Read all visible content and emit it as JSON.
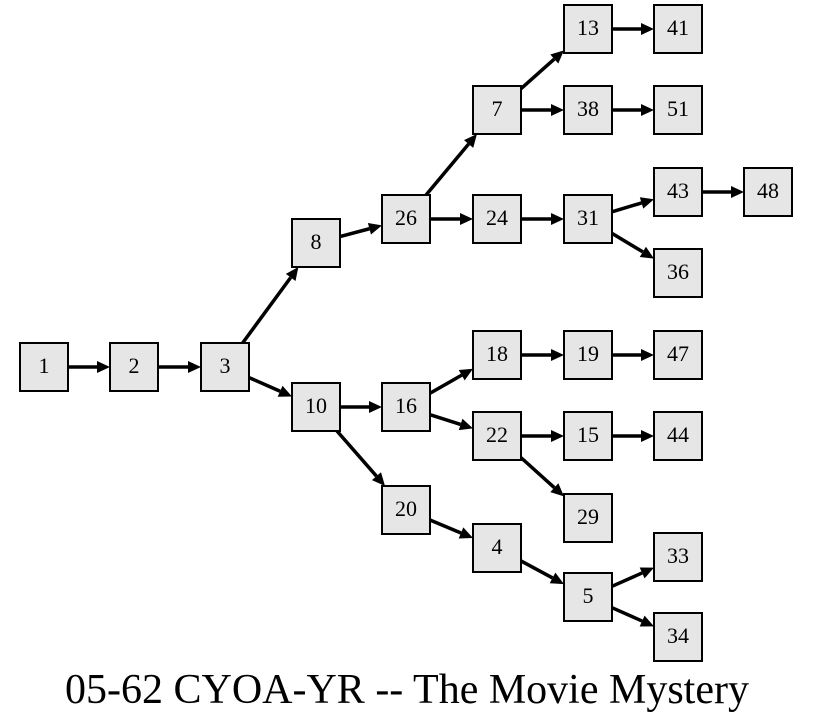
{
  "title": "05-62 CYOA-YR -- The Movie Mystery",
  "nodes": [
    "1",
    "2",
    "3",
    "8",
    "10",
    "26",
    "7",
    "24",
    "13",
    "38",
    "41",
    "51",
    "31",
    "43",
    "48",
    "36",
    "16",
    "20",
    "18",
    "19",
    "47",
    "22",
    "15",
    "44",
    "29",
    "4",
    "5",
    "33",
    "34"
  ],
  "edges": [
    [
      "1",
      "2"
    ],
    [
      "2",
      "3"
    ],
    [
      "3",
      "8"
    ],
    [
      "3",
      "10"
    ],
    [
      "8",
      "26"
    ],
    [
      "26",
      "7"
    ],
    [
      "26",
      "24"
    ],
    [
      "7",
      "13"
    ],
    [
      "7",
      "38"
    ],
    [
      "13",
      "41"
    ],
    [
      "38",
      "51"
    ],
    [
      "24",
      "31"
    ],
    [
      "31",
      "43"
    ],
    [
      "31",
      "36"
    ],
    [
      "43",
      "48"
    ],
    [
      "10",
      "16"
    ],
    [
      "10",
      "20"
    ],
    [
      "16",
      "18"
    ],
    [
      "16",
      "22"
    ],
    [
      "18",
      "19"
    ],
    [
      "19",
      "47"
    ],
    [
      "22",
      "15"
    ],
    [
      "22",
      "29"
    ],
    [
      "15",
      "44"
    ],
    [
      "20",
      "4"
    ],
    [
      "4",
      "5"
    ],
    [
      "5",
      "33"
    ],
    [
      "5",
      "34"
    ]
  ]
}
